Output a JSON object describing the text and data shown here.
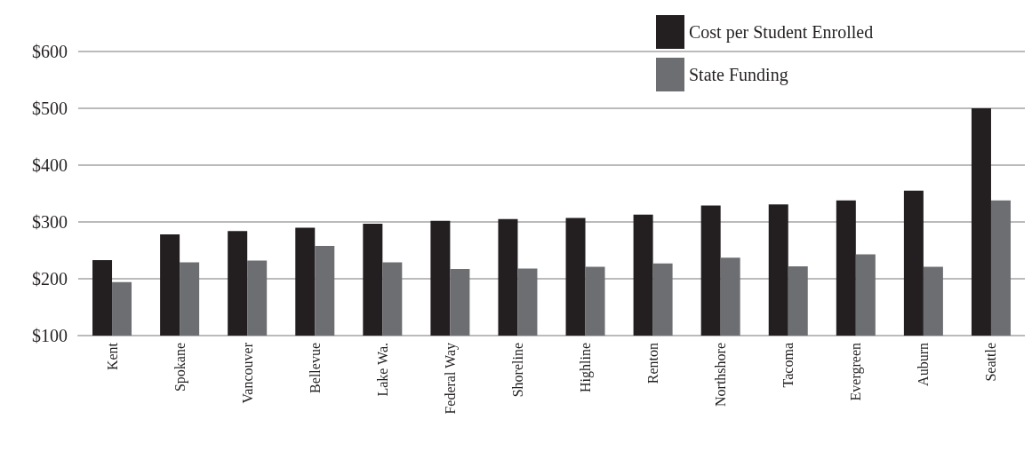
{
  "chart_data": {
    "type": "bar",
    "categories": [
      "Kent",
      "Spokane",
      "Vancouver",
      "Bellevue",
      "Lake Wa.",
      "Federal Way",
      "Shoreline",
      "Highline",
      "Renton",
      "Northshore",
      "Tacoma",
      "Evergreen",
      "Auburn",
      "Seattle"
    ],
    "series": [
      {
        "name": "Cost per Student Enrolled",
        "color": "#231f20",
        "values": [
          233,
          278,
          284,
          290,
          297,
          302,
          305,
          307,
          313,
          329,
          331,
          338,
          355,
          500
        ]
      },
      {
        "name": "State Funding",
        "color": "#6d6e71",
        "values": [
          194,
          229,
          232,
          258,
          229,
          217,
          218,
          221,
          227,
          237,
          222,
          243,
          221,
          338
        ]
      }
    ],
    "ylim": [
      100,
      600
    ],
    "yticks": [
      {
        "value": 100,
        "label": "$100"
      },
      {
        "value": 200,
        "label": "$200"
      },
      {
        "value": 300,
        "label": "$300"
      },
      {
        "value": 400,
        "label": "$400"
      },
      {
        "value": 500,
        "label": "$500"
      },
      {
        "value": 600,
        "label": "$600"
      }
    ],
    "grid": "y",
    "legend": "top right"
  }
}
